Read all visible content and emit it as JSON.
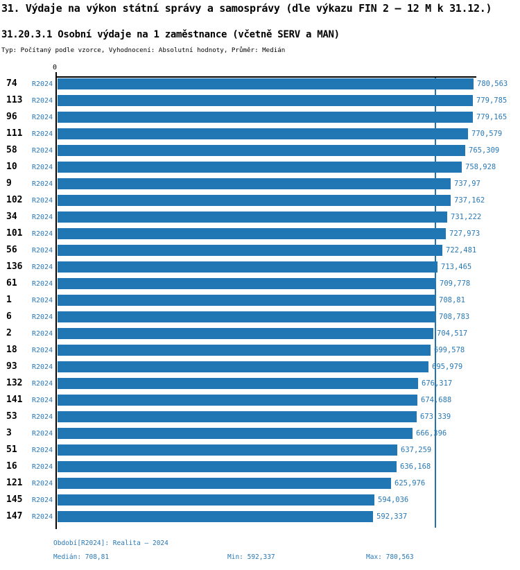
{
  "header": {
    "title": "31. Výdaje na výkon státní správy a samosprávy (dle výkazu FIN 2 – 12 M k 31.12.)",
    "subtitle": "31.20.3.1 Osobní výdaje na 1 zaměstnance (včetně SERV a MAN)",
    "meta": "Typ: Počítaný podle vzorce, Vyhodnocení: Absolutní hodnoty, Průměr: Medián"
  },
  "colors": {
    "bar": "#2077b4",
    "text_blue": "#2878b5",
    "median_line": "#2272ae",
    "axis": "#000000"
  },
  "chart_data": {
    "type": "bar",
    "orientation": "horizontal",
    "title": "31.20.3.1 Osobní výdaje na 1 zaměstnance (včetně SERV a MAN)",
    "series_label": "R2024",
    "zero_tick_label": "0",
    "categories": [
      "74",
      "113",
      "96",
      "111",
      "58",
      "10",
      "9",
      "102",
      "34",
      "101",
      "56",
      "136",
      "61",
      "1",
      "6",
      "2",
      "18",
      "93",
      "132",
      "141",
      "53",
      "3",
      "51",
      "16",
      "121",
      "145",
      "147"
    ],
    "values": [
      780.563,
      779.785,
      779.165,
      770.579,
      765.309,
      758.928,
      737.97,
      737.162,
      731.222,
      727.973,
      722.481,
      713.465,
      709.778,
      708.81,
      708.783,
      704.517,
      699.578,
      695.979,
      676.317,
      674.688,
      673.339,
      666.396,
      637.259,
      636.168,
      625.976,
      594.036,
      592.337
    ],
    "value_labels": [
      "780,563",
      "779,785",
      "779,165",
      "770,579",
      "765,309",
      "758,928",
      "737,97",
      "737,162",
      "731,222",
      "727,973",
      "722,481",
      "713,465",
      "709,778",
      "708,81",
      "708,783",
      "704,517",
      "699,578",
      "695,979",
      "676,317",
      "674,688",
      "673,339",
      "666,396",
      "637,259",
      "636,168",
      "625,976",
      "594,036",
      "592,337"
    ],
    "xlim": [
      0,
      780.563
    ],
    "median": 708.81,
    "grid": false,
    "legend": false
  },
  "footer": {
    "period": "Období[R2024]: Realita – 2024",
    "median": "Medián: 708,81",
    "min": "Min: 592,337",
    "max": "Max: 780,563"
  }
}
